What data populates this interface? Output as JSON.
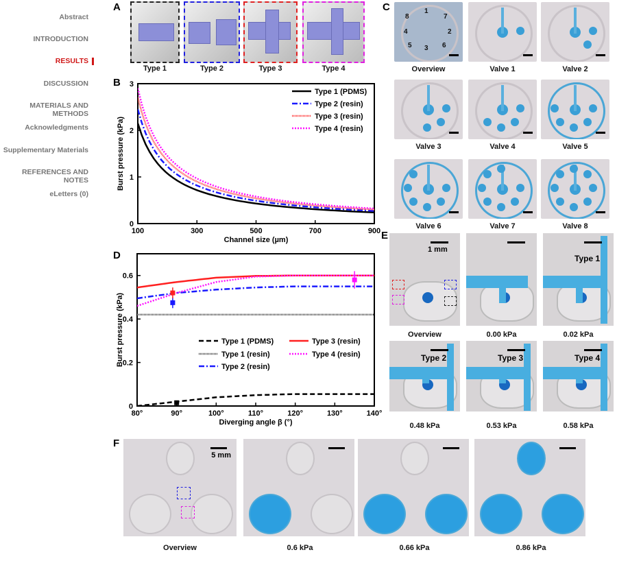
{
  "sidebar": {
    "items": [
      {
        "label": "Abstract"
      },
      {
        "label": "INTRODUCTION"
      },
      {
        "label": "RESULTS",
        "active": true
      },
      {
        "label": "DISCUSSION"
      },
      {
        "label": "MATERIALS AND METHODS"
      },
      {
        "label": "Acknowledgments"
      },
      {
        "label": "Supplementary Materials"
      },
      {
        "label": "REFERENCES AND NOTES"
      },
      {
        "label": "eLetters (0)"
      }
    ]
  },
  "panels": {
    "A": "A",
    "B": "B",
    "C": "C",
    "D": "D",
    "E": "E",
    "F": "F"
  },
  "panelA": {
    "captions": [
      "Type 1",
      "Type 2",
      "Type 3",
      "Type 4"
    ],
    "border_colors": [
      "#222222",
      "#2020e0",
      "#e02020",
      "#e020e0"
    ]
  },
  "panelC": {
    "captions": [
      "Overview",
      "Valve 1",
      "Valve 2",
      "Valve 3",
      "Valve 4",
      "Valve 5",
      "Valve 6",
      "Valve 7",
      "Valve 8"
    ],
    "numbers": [
      "1",
      "2",
      "3",
      "4",
      "5",
      "6",
      "7",
      "8"
    ]
  },
  "panelE": {
    "captions": [
      "Overview",
      "0.00 kPa",
      "0.02 kPa",
      "0.48 kPa",
      "0.53 kPa",
      "0.58 kPa"
    ],
    "scale_label": "1 mm",
    "inset_labels": [
      "Type 1",
      "Type 2",
      "Type 3",
      "Type 4"
    ]
  },
  "panelF": {
    "captions": [
      "Overview",
      "0.6 kPa",
      "0.66 kPa",
      "0.86 kPa"
    ],
    "scale_label": "5 mm"
  },
  "chart_data": [
    {
      "type": "line",
      "panel": "B",
      "xlabel": "Channel size (µm)",
      "ylabel": "Burst pressure (kPa)",
      "xlim": [
        100,
        900
      ],
      "ylim": [
        0,
        3
      ],
      "xticks": [
        100,
        300,
        500,
        700,
        900
      ],
      "yticks": [
        0,
        1,
        2,
        3
      ],
      "legend": "top-right",
      "x": [
        100,
        150,
        200,
        300,
        400,
        500,
        600,
        700,
        800,
        900
      ],
      "series": [
        {
          "name": "Type 1 (PDMS)",
          "color": "#000000",
          "dash": "",
          "values": [
            2.15,
            1.43,
            1.08,
            0.72,
            0.54,
            0.43,
            0.36,
            0.31,
            0.27,
            0.24
          ]
        },
        {
          "name": "Type 2 (resin)",
          "color": "#1a1aff",
          "dash": "8 3 2 3",
          "values": [
            2.45,
            1.63,
            1.23,
            0.82,
            0.61,
            0.49,
            0.41,
            0.35,
            0.31,
            0.27
          ]
        },
        {
          "name": "Type 3 (resin)",
          "color": "#ff3030",
          "dash": "1 1",
          "values": [
            2.7,
            1.8,
            1.35,
            0.9,
            0.68,
            0.54,
            0.45,
            0.39,
            0.34,
            0.3
          ]
        },
        {
          "name": "Type 4 (resin)",
          "color": "#ff10ff",
          "dash": "2 2",
          "values": [
            2.9,
            1.93,
            1.45,
            0.97,
            0.73,
            0.58,
            0.48,
            0.41,
            0.36,
            0.32
          ]
        }
      ]
    },
    {
      "type": "line",
      "panel": "D",
      "xlabel": "Diverging angle β (°)",
      "ylabel": "Burst pressure (kPa)",
      "xlim": [
        80,
        140
      ],
      "ylim": [
        0,
        0.7
      ],
      "xticks": [
        "80°",
        "90°",
        "100°",
        "110°",
        "120°",
        "130°",
        "140°"
      ],
      "yticks": [
        0,
        0.2,
        0.4,
        0.6
      ],
      "legend": "center",
      "x": [
        80,
        90,
        100,
        110,
        120,
        130,
        140
      ],
      "series": [
        {
          "name": "Type 1 (PDMS)",
          "color": "#000000",
          "dash": "7 4",
          "values": [
            0,
            0.02,
            0.04,
            0.05,
            0.055,
            0.055,
            0.055
          ]
        },
        {
          "name": "Type 1 (resin)",
          "color": "#444444",
          "dash": "1 1",
          "values": [
            0.42,
            0.42,
            0.42,
            0.42,
            0.42,
            0.42,
            0.42
          ]
        },
        {
          "name": "Type 2 (resin)",
          "color": "#1a1aff",
          "dash": "8 3 2 3",
          "values": [
            0.495,
            0.52,
            0.535,
            0.545,
            0.55,
            0.55,
            0.55
          ]
        },
        {
          "name": "Type 3 (resin)",
          "color": "#ff2020",
          "dash": "",
          "values": [
            0.545,
            0.57,
            0.59,
            0.598,
            0.6,
            0.6,
            0.6
          ]
        },
        {
          "name": "Type 4 (resin)",
          "color": "#ff10ff",
          "dash": "2 2",
          "values": [
            0.46,
            0.52,
            0.57,
            0.595,
            0.6,
            0.6,
            0.6
          ]
        }
      ],
      "points": [
        {
          "series": "Type 1 (PDMS)",
          "x": 90,
          "y": 0.015,
          "err": 0.005,
          "color": "#000000"
        },
        {
          "series": "Type 2 (resin)",
          "x": 89,
          "y": 0.475,
          "err": 0.025,
          "color": "#1a1aff"
        },
        {
          "series": "Type 3 (resin)",
          "x": 89,
          "y": 0.52,
          "err": 0.025,
          "color": "#ff2020"
        },
        {
          "series": "Type 4 (resin)",
          "x": 135,
          "y": 0.58,
          "err": 0.04,
          "color": "#ff10ff"
        }
      ]
    }
  ]
}
